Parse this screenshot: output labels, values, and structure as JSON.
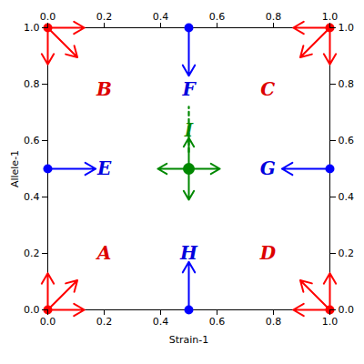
{
  "chart_data": {
    "type": "arrows",
    "xlabel": "Strain-1",
    "ylabel": "Allele-1",
    "xlim": [
      0.0,
      1.0
    ],
    "ylim": [
      0.0,
      1.0
    ],
    "xticks": [
      {
        "value": 0,
        "label": "0.0"
      },
      0.2,
      0.4,
      0.6,
      0.8,
      {
        "value": 1,
        "label": "1.0"
      }
    ],
    "yticks": [
      {
        "value": 0,
        "label": "0.0"
      },
      0.2,
      0.4,
      0.6,
      0.8,
      {
        "value": 1,
        "label": "1.0"
      }
    ],
    "grid": false,
    "series": [
      {
        "type": "arrow",
        "color": "red",
        "x": [
          0.0,
          0.0,
          0.0,
          1.0,
          1.0,
          1.0,
          0.0,
          0.0,
          0.0,
          1.0,
          1.0,
          1.0
        ],
        "y": [
          1.0,
          1.0,
          1.0,
          1.0,
          1.0,
          1.0,
          0.0,
          0.0,
          0.0,
          0.0,
          0.0,
          0.0
        ],
        "dx": [
          0.13,
          0.0,
          0.105,
          -0.13,
          0.0,
          -0.105,
          0.13,
          0.0,
          0.105,
          -0.13,
          0.0,
          -0.105
        ],
        "dy": [
          0.0,
          -0.13,
          -0.105,
          0.0,
          -0.13,
          -0.105,
          0.0,
          0.13,
          0.105,
          0.0,
          0.13,
          0.105
        ]
      },
      {
        "type": "scatter",
        "color": "red",
        "x": [
          0.0,
          1.0,
          0.0,
          1.0
        ],
        "y": [
          0.0,
          0.0,
          1.0,
          1.0
        ]
      },
      {
        "type": "arrow",
        "color": "blue",
        "x": [
          0.5,
          0.5,
          0.0,
          1.0
        ],
        "y": [
          1.0,
          0.0,
          0.5,
          0.5
        ],
        "dx": [
          0.0,
          0.0,
          0.17,
          -0.17
        ],
        "dy": [
          -0.17,
          0.17,
          0.0,
          0.0
        ]
      },
      {
        "type": "scatter",
        "color": "blue",
        "x": [
          0.5,
          0.5,
          0.0,
          1.0
        ],
        "y": [
          1.0,
          0.0,
          0.5,
          0.5
        ]
      },
      {
        "type": "arrow",
        "color": "#008800",
        "x": [
          0.5,
          0.5,
          0.5,
          0.5
        ],
        "y": [
          0.5,
          0.5,
          0.5,
          0.5
        ],
        "dx": [
          0.11,
          -0.11,
          0.0,
          0.0
        ],
        "dy": [
          0.0,
          0.0,
          0.11,
          -0.11
        ]
      },
      {
        "type": "line",
        "color": "#008800",
        "line_style": "dashed",
        "x": [
          0.5,
          0.5
        ],
        "y": [
          0.56,
          0.72
        ]
      },
      {
        "type": "scatter",
        "color": "#008800",
        "x": [
          0.5
        ],
        "y": [
          0.5
        ]
      }
    ],
    "annotations": [
      {
        "text": "A",
        "x": 0.2,
        "y": 0.2,
        "color": "#dd0000"
      },
      {
        "text": "B",
        "x": 0.2,
        "y": 0.78,
        "color": "#dd0000"
      },
      {
        "text": "C",
        "x": 0.78,
        "y": 0.78,
        "color": "#dd0000"
      },
      {
        "text": "D",
        "x": 0.78,
        "y": 0.2,
        "color": "#dd0000"
      },
      {
        "text": "E",
        "x": 0.2,
        "y": 0.5,
        "color": "#0000dd"
      },
      {
        "text": "F",
        "x": 0.5,
        "y": 0.78,
        "color": "#0000dd"
      },
      {
        "text": "G",
        "x": 0.78,
        "y": 0.5,
        "color": "#0000dd"
      },
      {
        "text": "H",
        "x": 0.5,
        "y": 0.2,
        "color": "#0000dd"
      },
      {
        "text": "I",
        "x": 0.5,
        "y": 0.635,
        "color": "#008800"
      }
    ]
  }
}
